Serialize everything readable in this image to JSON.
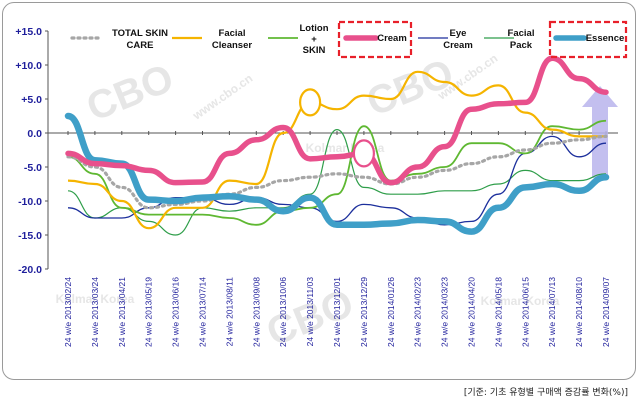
{
  "footnote": "[기준: 기초 유형별 구매액 증감률 변화(%)]",
  "colors": {
    "total": "#a6a6a6",
    "cleanser": "#f5b400",
    "lotion": "#5fb832",
    "cream": "#e8508c",
    "eye": "#1c2f9c",
    "pack": "#2f9e4a",
    "essence": "#3f9fc8",
    "axis_text": "#1f1f9c",
    "highlight": "#e8202a",
    "arrow": "#b8b4ec"
  },
  "chart_data": {
    "type": "line",
    "title": "",
    "xlabel": "",
    "ylabel": "",
    "ylim": [
      -20,
      15
    ],
    "yticks": [
      "+15.0",
      "+10.0",
      "+5.0",
      "0.0",
      "-5.0",
      "-10.0",
      "-15.0",
      "-20.0"
    ],
    "grid": false,
    "legend": "top",
    "categories": [
      "24 w/e 2013/02/24",
      "24 w/e 2013/03/24",
      "24 w/e 2013/04/21",
      "24 w/e 2013/05/19",
      "24 w/e 2013/06/16",
      "24 w/e 2013/07/14",
      "24 w/e 2013/08/11",
      "24 w/e 2013/09/08",
      "24 w/e 2013/10/06",
      "24 w/e 2013/11/03",
      "24 w/e 2013/12/01",
      "24 w/e 2013/12/29",
      "24 w/e 2014/01/26",
      "24 w/e 2014/02/23",
      "24 w/e 2014/03/23",
      "24 w/e 2014/04/20",
      "24 w/e 2014/05/18",
      "24 w/e 2014/06/15",
      "24 w/e 2014/07/13",
      "24 w/e 2014/08/10",
      "24 w/e 2014/09/07"
    ],
    "series": [
      {
        "name": "TOTAL SKIN CARE",
        "key": "total",
        "values": [
          -3.5,
          -5,
          -8,
          -11,
          -10.5,
          -10,
          -9,
          -8,
          -7,
          -6.5,
          -6,
          -6.5,
          -7.5,
          -6.5,
          -5.5,
          -4.5,
          -3.5,
          -2.5,
          -1.5,
          -1,
          -0.5
        ]
      },
      {
        "name": "Facial Cleanser",
        "key": "cleanser",
        "values": [
          -7,
          -7.5,
          -10,
          -14,
          -11,
          -11,
          -7,
          -7.5,
          0,
          4.5,
          3.5,
          5.5,
          5,
          9,
          7.5,
          5.5,
          7,
          3,
          0.5,
          -0.5,
          -0.5
        ]
      },
      {
        "name": "Lotion + SKIN",
        "key": "lotion",
        "values": [
          -3.5,
          -6,
          -11,
          -12,
          -12,
          -12,
          -12.5,
          -13.5,
          -11.5,
          -11,
          -9,
          1,
          -7,
          -6,
          -5,
          -1.5,
          -1.5,
          -3,
          1,
          0.5,
          1.8
        ]
      },
      {
        "name": "Cream",
        "key": "cream",
        "values": [
          -3,
          -4.5,
          -4.8,
          -5.5,
          -7.3,
          -7.2,
          -3,
          -1,
          0.8,
          -3.8,
          -3.5,
          -3,
          -7.3,
          -5,
          -2,
          3.5,
          4.3,
          4.5,
          11,
          8,
          6
        ]
      },
      {
        "name": "Eye Cream",
        "key": "eye",
        "values": [
          -11,
          -12.5,
          -12.5,
          -11,
          -9.5,
          -9.5,
          -10.5,
          -9.5,
          -10.5,
          -11,
          -13,
          -10.5,
          -11,
          -12.5,
          -13.5,
          -13,
          -9,
          -3,
          -0.5,
          -3.5,
          -1.5
        ]
      },
      {
        "name": "Facial Pack",
        "key": "pack",
        "values": [
          -8.5,
          -12.5,
          -11,
          -13,
          -15,
          -11,
          -11.5,
          -11,
          -11,
          -9,
          0.5,
          -8,
          -9,
          -9,
          -8.5,
          -8.5,
          -7.5,
          -5.5,
          -7,
          -7,
          -6
        ]
      },
      {
        "name": "Essence",
        "key": "essence",
        "values": [
          2.5,
          -4,
          -4.5,
          -9.8,
          -10,
          -9.5,
          -9.3,
          -9.8,
          -11.5,
          -9.5,
          -13.5,
          -13.5,
          -13.3,
          -12.8,
          -13,
          -14.5,
          -11,
          -8,
          -7.5,
          -8.5,
          -6.5
        ]
      }
    ],
    "annotations": {
      "circled": [
        {
          "series": "cleanser",
          "index": 9
        },
        {
          "series": "cream",
          "index": 11
        }
      ],
      "boxed_legend": [
        "Cream",
        "Essence"
      ],
      "arrow_up_at_index": 20
    },
    "watermarks": [
      "CBO",
      "www.cbo.cn",
      "Kolmar Korea"
    ]
  }
}
